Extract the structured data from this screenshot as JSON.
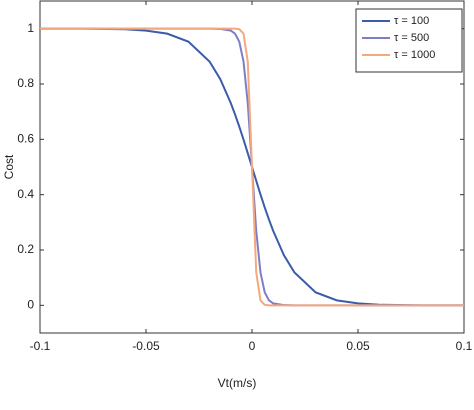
{
  "chart_data": {
    "type": "line",
    "x_label": "Vt(m/s)",
    "y_label": "Cost",
    "x": [
      -0.1,
      -0.08,
      -0.06,
      -0.05,
      -0.04,
      -0.03,
      -0.02,
      -0.015,
      -0.01,
      -0.008,
      -0.006,
      -0.004,
      -0.002,
      0,
      0.002,
      0.004,
      0.006,
      0.008,
      0.01,
      0.015,
      0.02,
      0.03,
      0.04,
      0.05,
      0.06,
      0.08,
      0.1
    ],
    "series": [
      {
        "name": "τ = 100",
        "color": "#3b5ca9",
        "values": [
          1,
          1,
          0.998,
          0.993,
          0.982,
          0.953,
          0.881,
          0.818,
          0.731,
          0.69,
          0.646,
          0.599,
          0.55,
          0.5,
          0.45,
          0.401,
          0.354,
          0.31,
          0.269,
          0.182,
          0.119,
          0.047,
          0.018,
          0.007,
          0.002,
          0,
          0
        ]
      },
      {
        "name": "τ = 500",
        "color": "#7d7fc6",
        "values": [
          1,
          1,
          1,
          1,
          1,
          1,
          1,
          0.999,
          0.993,
          0.982,
          0.953,
          0.881,
          0.731,
          0.5,
          0.269,
          0.119,
          0.047,
          0.018,
          0.007,
          0.001,
          0,
          0,
          0,
          0,
          0,
          0,
          0
        ]
      },
      {
        "name": "τ = 1000",
        "color": "#f5a87c",
        "values": [
          1,
          1,
          1,
          1,
          1,
          1,
          1,
          1,
          1,
          1,
          0.998,
          0.982,
          0.881,
          0.5,
          0.119,
          0.018,
          0.002,
          0,
          0,
          0,
          0,
          0,
          0,
          0,
          0,
          0,
          0
        ]
      }
    ],
    "xlim": [
      -0.1,
      0.1
    ],
    "xticks": [
      -0.1,
      -0.05,
      0,
      0.05,
      0.1
    ],
    "ylim": [
      -0.1,
      1.1
    ],
    "yticks": [
      0,
      0.2,
      0.4,
      0.6,
      0.8,
      1
    ],
    "grid": false,
    "legend": "upper right"
  }
}
